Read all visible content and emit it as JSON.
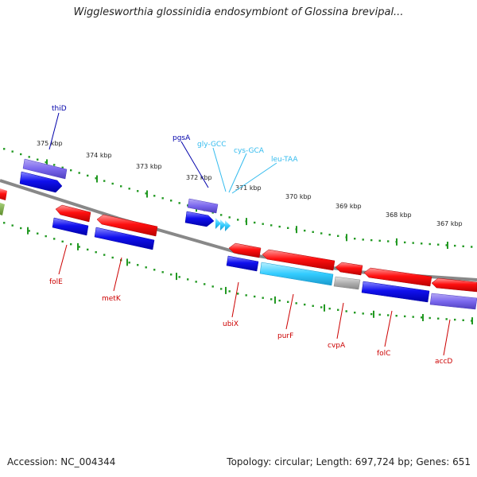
{
  "title": "Wigglesworthia glossinidia endosymbiont of Glossina brevipal...",
  "footer": {
    "accession": "Accession: NC_004344",
    "summary": "Topology: circular; Length: 697,724 bp; Genes: 651"
  },
  "colors": {
    "forward_gene": "#ff0000",
    "reverse_gene": "#0000ee",
    "trna": "#33ccff",
    "rrna": "#7b68ee",
    "pseudo": "#aaaaaa",
    "other": "#66aa33",
    "backbone": "#888888",
    "tick": "#229922",
    "label_cds_fwd": "#cc0000",
    "label_cds_rev": "#0000aa",
    "label_trna": "#33bbee"
  },
  "ticks": {
    "outer": [
      {
        "label": "375 kbp"
      },
      {
        "label": "374 kbp"
      },
      {
        "label": "373 kbp"
      },
      {
        "label": "372 kbp"
      },
      {
        "label": "371 kbp"
      },
      {
        "label": "370 kbp"
      },
      {
        "label": "369 kbp"
      },
      {
        "label": "368 kbp"
      },
      {
        "label": "367 kbp"
      }
    ]
  },
  "genes_top": [
    {
      "name": "thiD",
      "type": "cds_rev"
    },
    {
      "name": "pgsA",
      "type": "cds_rev"
    },
    {
      "name": "gly-GCC",
      "type": "trna"
    },
    {
      "name": "cys-GCA",
      "type": "trna"
    },
    {
      "name": "leu-TAA",
      "type": "trna"
    }
  ],
  "genes_bottom": [
    {
      "name": "folE",
      "type": "cds_fwd"
    },
    {
      "name": "metK",
      "type": "cds_fwd"
    },
    {
      "name": "ubiX",
      "type": "cds_fwd"
    },
    {
      "name": "purF",
      "type": "cds_fwd"
    },
    {
      "name": "cvpA",
      "type": "cds_fwd"
    },
    {
      "name": "folC",
      "type": "cds_fwd"
    },
    {
      "name": "accD",
      "type": "cds_fwd"
    }
  ]
}
